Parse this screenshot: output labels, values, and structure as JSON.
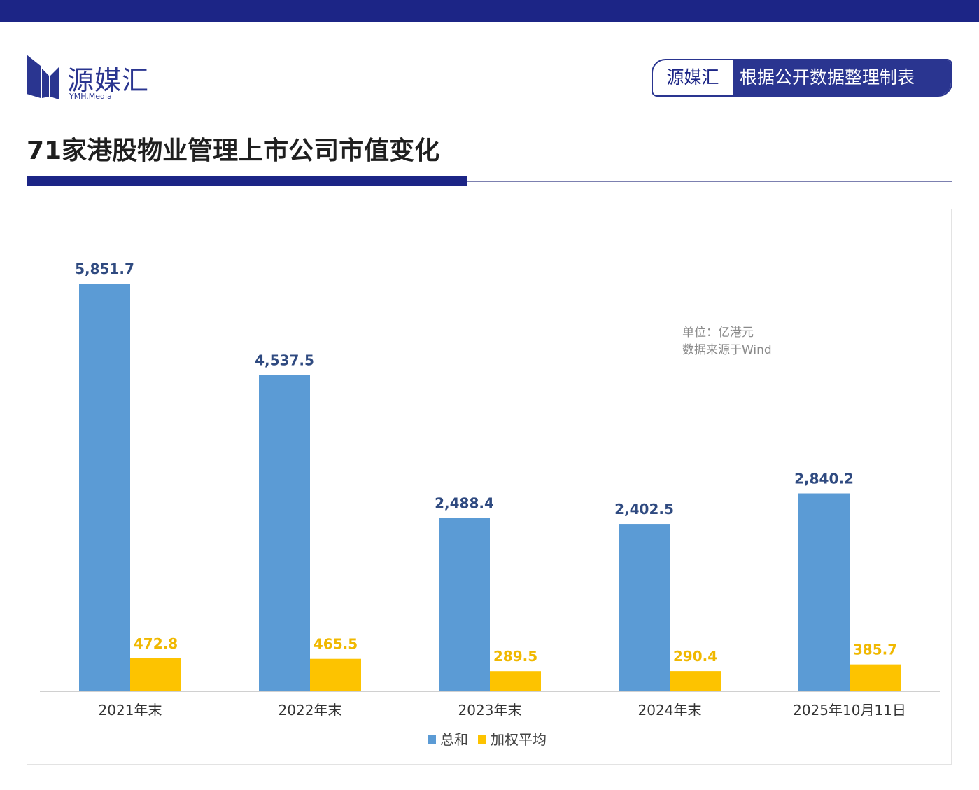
{
  "header": {
    "brand_name": "源媒汇",
    "brand_sub": "YMH.Media",
    "badge_left": "源媒汇",
    "badge_right": "根据公开数据整理制表"
  },
  "colors": {
    "top_bar": "#1c2586",
    "series_total": "#5b9bd5",
    "series_weighted": "#fdc300",
    "label_total": "#2f4a80",
    "label_weighted": "#f0b800"
  },
  "chart_data": {
    "type": "bar",
    "title": "71家港股物业管理上市公司市值变化",
    "categories": [
      "2021年末",
      "2022年末",
      "2023年末",
      "2024年末",
      "2025年10月11日"
    ],
    "series": [
      {
        "name": "总和",
        "values": [
          5851.7,
          4537.5,
          2488.4,
          2402.5,
          2840.2
        ],
        "labels": [
          "5,851.7",
          "4,537.5",
          "2,488.4",
          "2,402.5",
          "2,840.2"
        ]
      },
      {
        "name": "加权平均",
        "values": [
          472.8,
          465.5,
          289.5,
          290.4,
          385.7
        ],
        "labels": [
          "472.8",
          "465.5",
          "289.5",
          "290.4",
          "385.7"
        ]
      }
    ],
    "ylim": [
      0,
      5851.7
    ],
    "legend_position": "bottom",
    "grid": false,
    "annotations": [
      "单位：亿港元",
      "数据来源于Wind"
    ]
  }
}
